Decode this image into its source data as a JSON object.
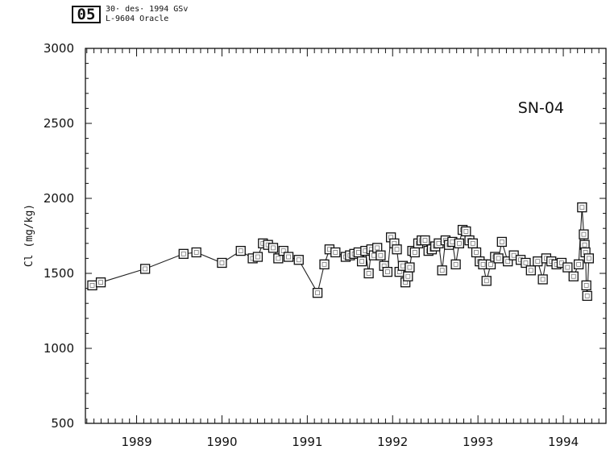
{
  "stamp": {
    "badge": "05",
    "line1": "30· des· 1994 GSv",
    "line2": "L-9604 Oracle"
  },
  "chart_data": {
    "type": "line",
    "title": "SN-04",
    "ylabel": "Cl  (mg/kg)",
    "xlabel": "",
    "xlim": [
      1988.4,
      1994.5
    ],
    "ylim": [
      500,
      3000
    ],
    "yticks": [
      500,
      1000,
      1500,
      2000,
      2500,
      3000
    ],
    "xticks": [
      1989,
      1990,
      1991,
      1992,
      1993,
      1994
    ],
    "grid": false,
    "marker": "open-square",
    "series": [
      {
        "x": [
          1988.48,
          1988.58,
          1989.1,
          1989.55,
          1989.7,
          1990.0,
          1990.22,
          1990.36,
          1990.42,
          1990.48,
          1990.54,
          1990.6,
          1990.66,
          1990.72,
          1990.78,
          1990.9,
          1991.12,
          1991.2,
          1991.26,
          1991.33,
          1991.45,
          1991.5,
          1991.55,
          1991.6,
          1991.64,
          1991.68,
          1991.72,
          1991.75,
          1991.78,
          1991.82,
          1991.86,
          1991.9,
          1991.94,
          1991.98,
          1992.02,
          1992.05,
          1992.08,
          1992.12,
          1992.15,
          1992.18,
          1992.2,
          1992.23,
          1992.26,
          1992.3,
          1992.34,
          1992.38,
          1992.42,
          1992.46,
          1992.5,
          1992.54,
          1992.58,
          1992.62,
          1992.66,
          1992.7,
          1992.74,
          1992.78,
          1992.82,
          1992.86,
          1992.9,
          1992.94,
          1992.98,
          1993.02,
          1993.06,
          1993.1,
          1993.15,
          1993.2,
          1993.24,
          1993.28,
          1993.35,
          1993.42,
          1993.5,
          1993.56,
          1993.62,
          1993.7,
          1993.76,
          1993.8,
          1993.86,
          1993.92,
          1993.98,
          1994.05,
          1994.12,
          1994.18,
          1994.22,
          1994.24,
          1994.25,
          1994.26,
          1994.27,
          1994.28,
          1994.3
        ],
        "y": [
          1420,
          1440,
          1530,
          1630,
          1640,
          1570,
          1650,
          1600,
          1610,
          1700,
          1690,
          1670,
          1600,
          1650,
          1610,
          1590,
          1370,
          1560,
          1660,
          1640,
          1610,
          1620,
          1630,
          1640,
          1580,
          1650,
          1500,
          1660,
          1620,
          1670,
          1620,
          1550,
          1510,
          1740,
          1700,
          1660,
          1510,
          1550,
          1440,
          1480,
          1540,
          1650,
          1640,
          1700,
          1720,
          1720,
          1650,
          1660,
          1680,
          1700,
          1520,
          1720,
          1690,
          1710,
          1560,
          1700,
          1790,
          1780,
          1720,
          1700,
          1640,
          1580,
          1560,
          1450,
          1560,
          1610,
          1600,
          1710,
          1580,
          1620,
          1590,
          1570,
          1520,
          1580,
          1460,
          1600,
          1580,
          1560,
          1570,
          1540,
          1480,
          1560,
          1940,
          1760,
          1690,
          1640,
          1420,
          1350,
          1600
        ]
      }
    ]
  }
}
